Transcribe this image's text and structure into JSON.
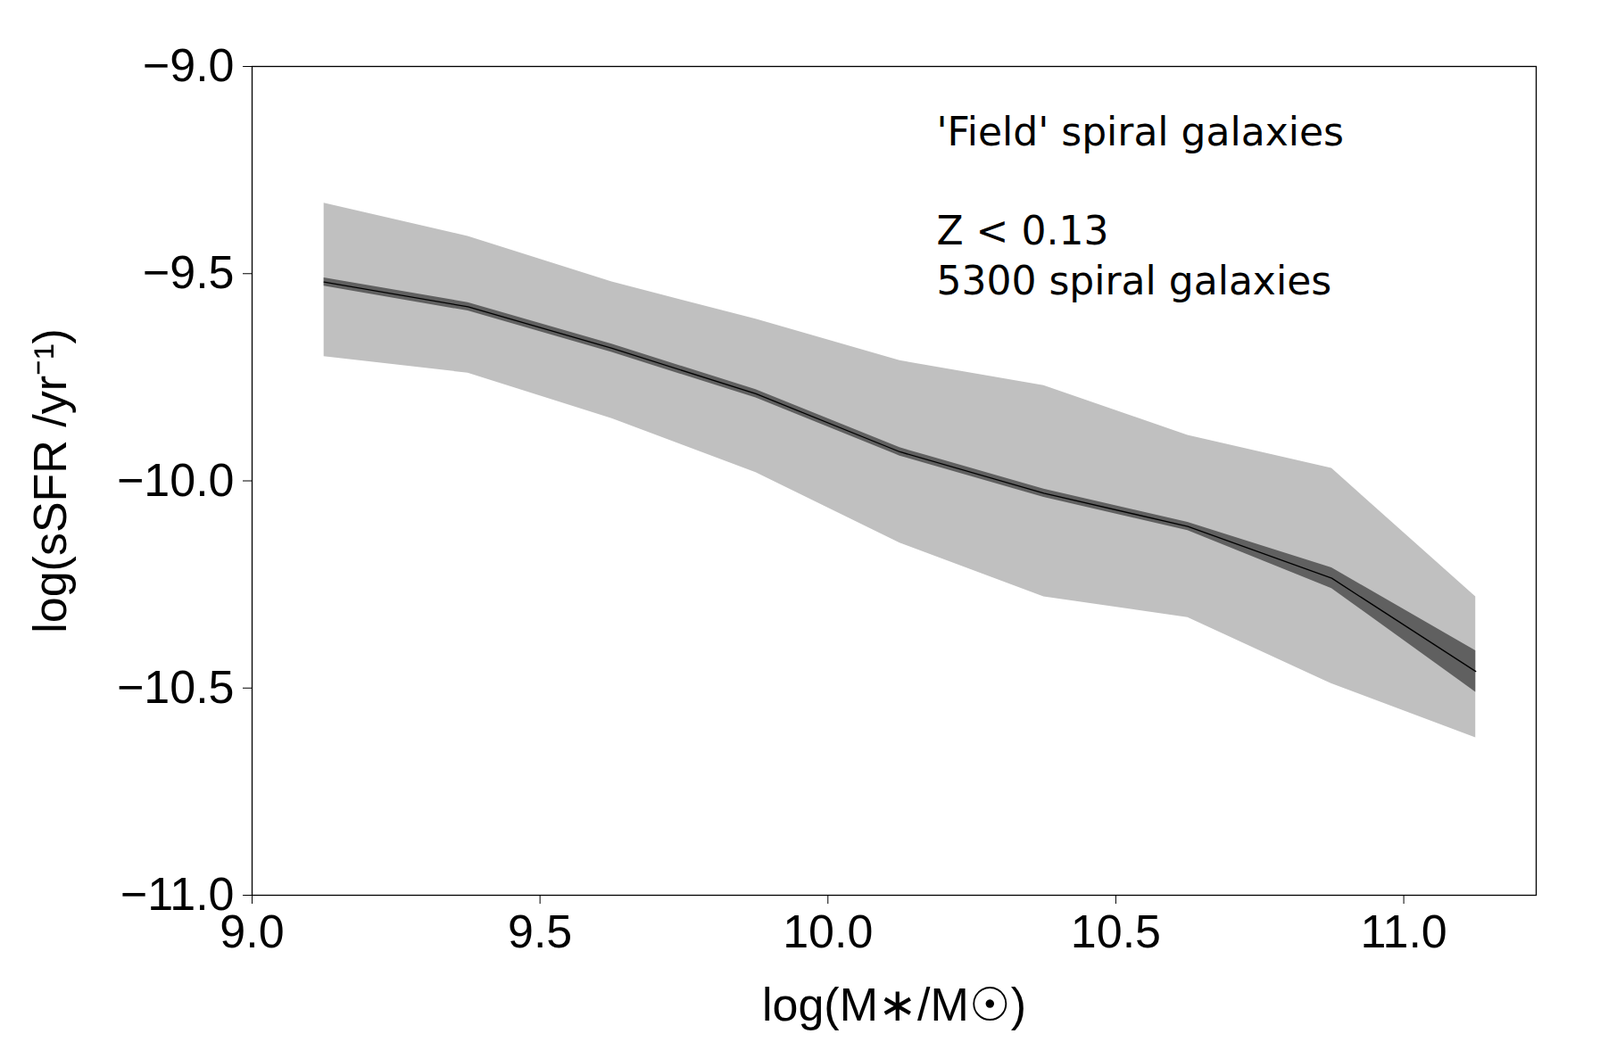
{
  "chart_data": {
    "type": "line",
    "x_label": "log(M∗/M☉)",
    "y_label": "log(sSFR /yr⁻¹)",
    "annotations": [
      "'Field' spiral galaxies",
      "Z < 0.13",
      "5300 spiral galaxies"
    ],
    "x": [
      9.125,
      9.375,
      9.625,
      9.875,
      10.125,
      10.375,
      10.625,
      10.875,
      11.125
    ],
    "series": [
      {
        "type": "area",
        "color": "#c0c0c0",
        "lower": [
          -9.7,
          -9.74,
          -9.85,
          -9.98,
          -10.15,
          -10.28,
          -10.33,
          -10.49,
          -10.62
        ],
        "upper": [
          -9.33,
          -9.41,
          -9.52,
          -9.61,
          -9.71,
          -9.77,
          -9.89,
          -9.97,
          -10.28
        ]
      },
      {
        "type": "area",
        "color": "#606060",
        "lower": [
          -9.53,
          -9.59,
          -9.69,
          -9.8,
          -9.94,
          -10.04,
          -10.12,
          -10.26,
          -10.51
        ],
        "upper": [
          -9.51,
          -9.57,
          -9.67,
          -9.78,
          -9.92,
          -10.02,
          -10.1,
          -10.21,
          -10.41
        ]
      },
      {
        "type": "line",
        "color": "#000000",
        "values": [
          -9.52,
          -9.58,
          -9.68,
          -9.79,
          -9.93,
          -10.03,
          -10.11,
          -10.235,
          -10.46
        ]
      }
    ],
    "xlim": [
      9.0,
      11.23
    ],
    "ylim": [
      -11.0,
      -9.0
    ],
    "xticks": [
      {
        "value": 9,
        "label": "9.0"
      },
      9.5,
      {
        "value": 10,
        "label": "10.0"
      },
      10.5,
      {
        "value": 11,
        "label": "11.0"
      }
    ],
    "yticks": [
      {
        "value": -11,
        "label": "−11.0"
      },
      {
        "value": -10.5,
        "label": "−10.5"
      },
      {
        "value": -10,
        "label": "−10.0"
      },
      {
        "value": -9.5,
        "label": "−9.5"
      },
      {
        "value": -9,
        "label": "−9.0"
      }
    ],
    "grid": false
  }
}
